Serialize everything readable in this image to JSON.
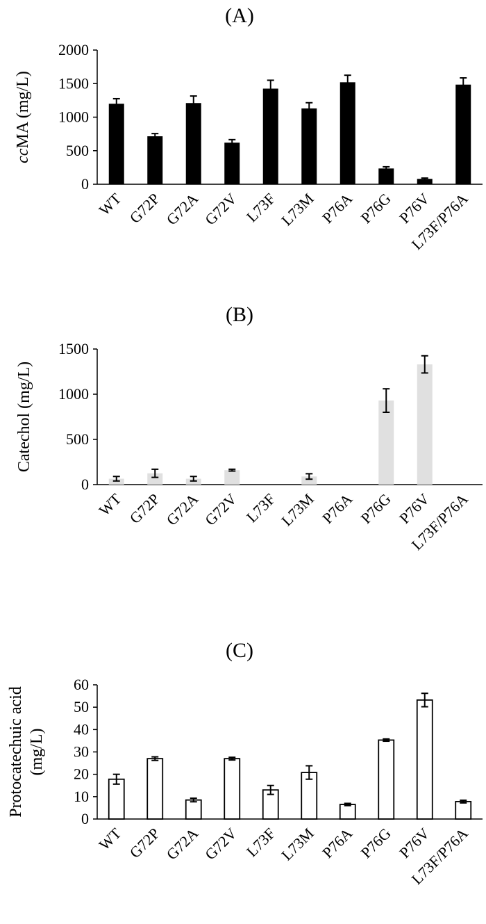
{
  "chart_data": [
    {
      "type": "bar",
      "title": "(A)",
      "ylabel_parts": [
        "cc",
        "MA (mg/L)"
      ],
      "categories": [
        "WT",
        "G72P",
        "G72A",
        "G72V",
        "L73F",
        "L73M",
        "P76A",
        "P76G",
        "P76V",
        "L73F/P76A"
      ],
      "series": [
        {
          "values": [
            1200,
            715,
            1210,
            620,
            1425,
            1130,
            1520,
            235,
            80,
            1485
          ],
          "errors": [
            75,
            40,
            105,
            45,
            125,
            85,
            105,
            25,
            12,
            100
          ]
        }
      ],
      "ylim": [
        0,
        2000
      ],
      "yticks": [
        0,
        500,
        1000,
        1500,
        2000
      ],
      "bar_color": "#000000",
      "grid": false
    },
    {
      "type": "bar",
      "title": "(B)",
      "ylabel": "Catechol (mg/L)",
      "categories": [
        "WT",
        "G72P",
        "G72A",
        "G72V",
        "L73F",
        "L73M",
        "P76A",
        "P76G",
        "P76V",
        "L73F/P76A"
      ],
      "series": [
        {
          "values": [
            65,
            125,
            65,
            160,
            0,
            90,
            0,
            930,
            1330,
            0
          ],
          "errors": [
            25,
            45,
            25,
            10,
            0,
            30,
            0,
            130,
            95,
            0
          ]
        }
      ],
      "ylim": [
        0,
        1500
      ],
      "yticks": [
        0,
        500,
        1000,
        1500
      ],
      "bar_color": "#e0e0e0",
      "grid": false
    },
    {
      "type": "bar",
      "title": "(C)",
      "ylabel_lines": [
        "Protocatechuic acid",
        "(mg/L)"
      ],
      "categories": [
        "WT",
        "G72P",
        "G72A",
        "G72V",
        "L73F",
        "L73M",
        "P76A",
        "P76G",
        "P76V",
        "L73F/P76A"
      ],
      "series": [
        {
          "values": [
            17.8,
            27,
            8.5,
            27,
            13,
            20.8,
            6.5,
            35.3,
            53.2,
            7.8
          ],
          "errors": [
            2.2,
            0.8,
            0.8,
            0.6,
            2,
            3,
            0.5,
            0.5,
            3,
            0.6
          ]
        }
      ],
      "ylim": [
        0,
        60
      ],
      "yticks": [
        0,
        10,
        20,
        30,
        40,
        50,
        60
      ],
      "bar_color": "#ffffff",
      "bar_stroke": "#000000",
      "grid": false
    }
  ]
}
